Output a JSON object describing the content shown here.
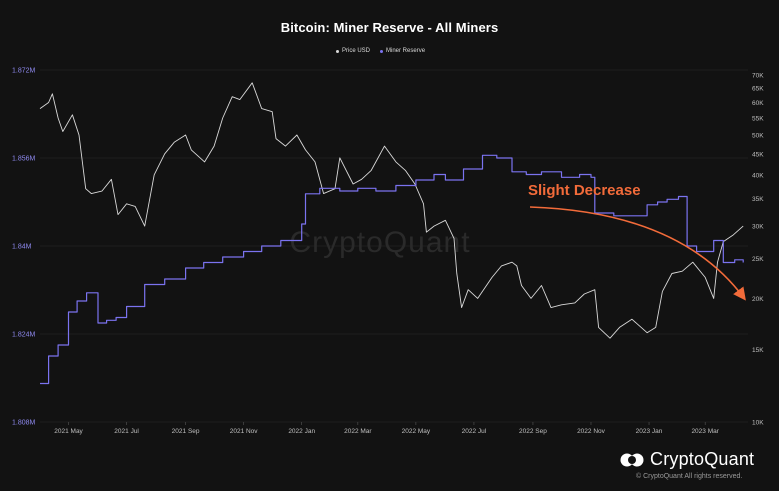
{
  "title": "Bitcoin: Miner Reserve - All Miners",
  "legend": {
    "price_label": "Price USD",
    "reserve_label": "Miner Reserve"
  },
  "annotation": {
    "text": "Slight Decrease",
    "color": "#f26b3a"
  },
  "watermark": "CryptoQuant",
  "brand": {
    "name": "CryptoQuant",
    "copyright": "© CryptoQuant All rights reserved."
  },
  "colors": {
    "background": "#121212",
    "price_line": "#d9d9d9",
    "reserve_line": "#7b73f0",
    "left_axis_text": "#8f8af0",
    "right_axis_text": "#bfbfbf",
    "annotation": "#f26b3a"
  },
  "chart_data": {
    "type": "line",
    "title": "Bitcoin: Miner Reserve - All Miners",
    "x_tick_labels": [
      "2021 May",
      "2021 Jul",
      "2021 Sep",
      "2021 Nov",
      "2022 Jan",
      "2022 Mar",
      "2022 May",
      "2022 Jul",
      "2022 Sep",
      "2022 Nov",
      "2023 Jan",
      "2023 Mar"
    ],
    "x_range": [
      "2021-04-01",
      "2023-04-15"
    ],
    "left_axis": {
      "series": "Miner Reserve",
      "ticks": [
        "1.808M",
        "1.824M",
        "1.84M",
        "1.856M",
        "1.872M"
      ],
      "tick_values": [
        1808000,
        1824000,
        1840000,
        1856000,
        1872000
      ],
      "range": [
        1808000,
        1872000
      ]
    },
    "right_axis": {
      "series": "Price USD",
      "scale": "log",
      "ticks": [
        "10K",
        "15K",
        "20K",
        "25K",
        "30K",
        "35K",
        "40K",
        "45K",
        "50K",
        "55K",
        "60K",
        "65K",
        "70K"
      ],
      "tick_values": [
        10000,
        15000,
        20000,
        25000,
        30000,
        35000,
        40000,
        45000,
        50000,
        55000,
        60000,
        65000,
        70000
      ],
      "range": [
        10000,
        72000
      ]
    },
    "grid": "horizontal",
    "legend_position": "top-center",
    "series": [
      {
        "name": "Price USD",
        "axis": "right",
        "x": [
          "2021-04-01",
          "2021-04-10",
          "2021-04-14",
          "2021-04-20",
          "2021-04-25",
          "2021-05-05",
          "2021-05-12",
          "2021-05-19",
          "2021-05-25",
          "2021-06-05",
          "2021-06-15",
          "2021-06-22",
          "2021-07-01",
          "2021-07-10",
          "2021-07-20",
          "2021-07-30",
          "2021-08-10",
          "2021-08-20",
          "2021-09-01",
          "2021-09-07",
          "2021-09-21",
          "2021-10-01",
          "2021-10-10",
          "2021-10-20",
          "2021-10-28",
          "2021-11-10",
          "2021-11-20",
          "2021-12-01",
          "2021-12-05",
          "2021-12-15",
          "2021-12-27",
          "2022-01-05",
          "2022-01-15",
          "2022-01-24",
          "2022-02-05",
          "2022-02-10",
          "2022-02-24",
          "2022-03-05",
          "2022-03-15",
          "2022-03-29",
          "2022-04-10",
          "2022-04-20",
          "2022-04-30",
          "2022-05-09",
          "2022-05-12",
          "2022-05-20",
          "2022-06-01",
          "2022-06-10",
          "2022-06-13",
          "2022-06-18",
          "2022-06-25",
          "2022-07-05",
          "2022-07-20",
          "2022-07-30",
          "2022-08-10",
          "2022-08-15",
          "2022-08-20",
          "2022-08-30",
          "2022-09-10",
          "2022-09-20",
          "2022-10-01",
          "2022-10-15",
          "2022-10-25",
          "2022-11-05",
          "2022-11-09",
          "2022-11-21",
          "2022-12-01",
          "2022-12-14",
          "2022-12-30",
          "2023-01-08",
          "2023-01-15",
          "2023-01-25",
          "2023-02-05",
          "2023-02-16",
          "2023-03-01",
          "2023-03-10",
          "2023-03-14",
          "2023-03-20",
          "2023-03-30",
          "2023-04-10"
        ],
        "values": [
          58000,
          60000,
          63000,
          55000,
          51000,
          56000,
          50000,
          37000,
          36000,
          36500,
          39000,
          32000,
          34000,
          33500,
          30000,
          40000,
          45000,
          48000,
          50000,
          46000,
          43000,
          47000,
          55000,
          62000,
          61000,
          67000,
          58000,
          57000,
          49000,
          47000,
          50000,
          46000,
          43000,
          36000,
          37000,
          44000,
          38000,
          39000,
          41000,
          47000,
          43000,
          41000,
          38000,
          34000,
          29000,
          30000,
          31000,
          28000,
          23000,
          19000,
          21000,
          20000,
          22500,
          24000,
          24500,
          24000,
          21500,
          20000,
          21500,
          19000,
          19300,
          19500,
          20500,
          21000,
          17000,
          16000,
          17000,
          17800,
          16500,
          17000,
          20800,
          23000,
          23300,
          24500,
          22500,
          20000,
          24500,
          27500,
          28500,
          30000
        ]
      },
      {
        "name": "Miner Reserve",
        "axis": "left",
        "x": [
          "2021-04-01",
          "2021-04-10",
          "2021-04-20",
          "2021-05-01",
          "2021-05-10",
          "2021-05-20",
          "2021-06-01",
          "2021-06-10",
          "2021-06-20",
          "2021-07-01",
          "2021-07-20",
          "2021-08-10",
          "2021-09-01",
          "2021-09-20",
          "2021-10-10",
          "2021-11-01",
          "2021-11-20",
          "2021-12-10",
          "2022-01-01",
          "2022-01-05",
          "2022-01-20",
          "2022-02-10",
          "2022-03-01",
          "2022-03-20",
          "2022-04-10",
          "2022-05-01",
          "2022-05-20",
          "2022-06-01",
          "2022-06-20",
          "2022-07-10",
          "2022-07-25",
          "2022-08-10",
          "2022-08-25",
          "2022-09-10",
          "2022-10-01",
          "2022-10-20",
          "2022-11-01",
          "2022-11-05",
          "2022-11-25",
          "2022-12-10",
          "2022-12-30",
          "2023-01-10",
          "2023-01-20",
          "2023-02-01",
          "2023-02-10",
          "2023-02-20",
          "2023-03-01",
          "2023-03-10",
          "2023-03-20",
          "2023-04-01",
          "2023-04-10"
        ],
        "values": [
          1815000,
          1820000,
          1822000,
          1828000,
          1830000,
          1831500,
          1826000,
          1826500,
          1827000,
          1829000,
          1833000,
          1834000,
          1836000,
          1837000,
          1838000,
          1839000,
          1840000,
          1841000,
          1844000,
          1849500,
          1850500,
          1850000,
          1850500,
          1850000,
          1851000,
          1852000,
          1853000,
          1852000,
          1854000,
          1856500,
          1856000,
          1853500,
          1853000,
          1853500,
          1852500,
          1853000,
          1852500,
          1846000,
          1845500,
          1845500,
          1847500,
          1848000,
          1848500,
          1849000,
          1840000,
          1839000,
          1839000,
          1841000,
          1837000,
          1837500,
          1837000
        ]
      }
    ]
  }
}
